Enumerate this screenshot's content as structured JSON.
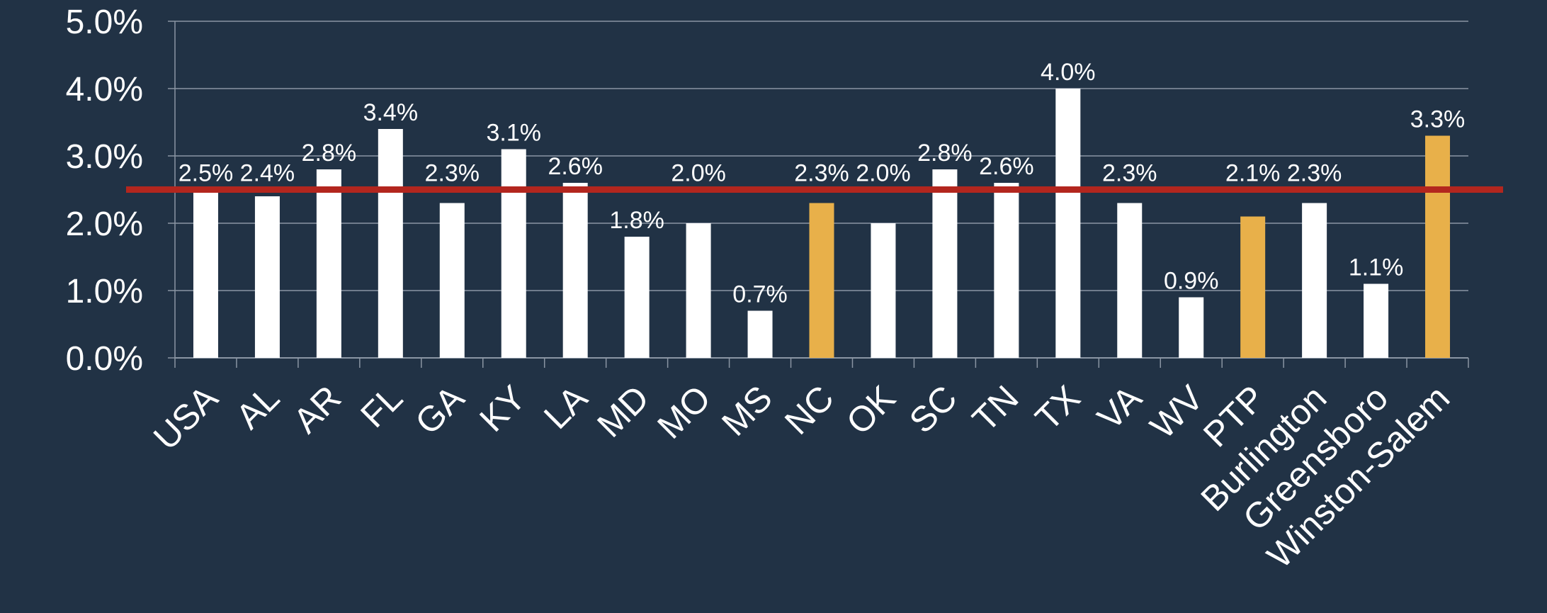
{
  "chart_data": {
    "type": "bar",
    "title": "",
    "xlabel": "",
    "ylabel": "",
    "ylim": [
      0,
      5
    ],
    "y_ticks": [
      "0.0%",
      "1.0%",
      "2.0%",
      "3.0%",
      "4.0%",
      "5.0%"
    ],
    "grid": true,
    "legend": "none",
    "categories": [
      "USA",
      "AL",
      "AR",
      "FL",
      "GA",
      "KY",
      "LA",
      "MD",
      "MO",
      "MS",
      "NC",
      "OK",
      "SC",
      "TN",
      "TX",
      "VA",
      "WV",
      "PTP",
      "Burlington",
      "Greensboro",
      "Winston-Salem"
    ],
    "values": [
      2.5,
      2.4,
      2.8,
      3.4,
      2.3,
      3.1,
      2.6,
      1.8,
      2.0,
      0.7,
      2.3,
      2.0,
      2.8,
      2.6,
      4.0,
      2.3,
      0.9,
      2.1,
      2.3,
      1.1,
      3.3
    ],
    "data_labels": [
      "2.5%",
      "2.4%",
      "2.8%",
      "3.4%",
      "2.3%",
      "3.1%",
      "2.6%",
      "1.8%",
      "2.0%",
      "0.7%",
      "2.3%",
      "2.0%",
      "2.8%",
      "2.6%",
      "4.0%",
      "2.3%",
      "0.9%",
      "2.1%",
      "2.3%",
      "1.1%",
      "3.3%"
    ],
    "highlighted_categories": [
      "NC",
      "PTP",
      "Winston-Salem"
    ],
    "reference_line_value": 2.5,
    "colors": {
      "background": "#213245",
      "bar": "#ffffff",
      "highlight_bar": "#e8b04a",
      "reference_line": "#b3261e",
      "grid": "#8a95a3",
      "text": "#ffffff"
    }
  }
}
